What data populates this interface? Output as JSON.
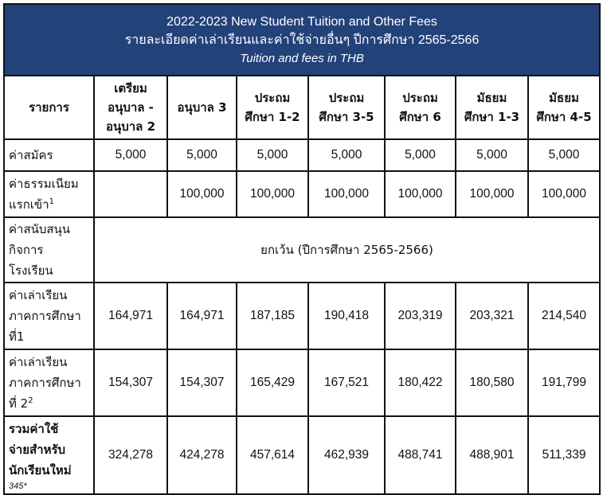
{
  "header": {
    "title": "2022-2023 New Student Tuition and Other Fees",
    "title_th": "รายละเอียดค่าเล่าเรียนและค่าใช้จ่ายอื่นๆ ปีการศึกษา 2565-2566",
    "subtitle": "Tuition and fees in THB"
  },
  "columns": {
    "item": "รายการ",
    "c1": [
      "เตรียม",
      "อนุบาล -",
      "อนุบาล 2"
    ],
    "c2": [
      "อนุบาล 3"
    ],
    "c3": [
      "ประถม",
      "ศึกษา 1-2"
    ],
    "c4": [
      "ประถม",
      "ศึกษา 3-5"
    ],
    "c5": [
      "ประถม",
      "ศึกษา 6"
    ],
    "c6": [
      "มัธยม",
      "ศึกษา 1-3"
    ],
    "c7": [
      "มัธยม",
      "ศึกษา 4-5"
    ]
  },
  "rows": {
    "application": {
      "label": "ค่าสมัคร",
      "values": [
        "5,000",
        "5,000",
        "5,000",
        "5,000",
        "5,000",
        "5,000",
        "5,000"
      ]
    },
    "entrance": {
      "label_line1": "ค่าธรรมเนียม",
      "label_line2": "แรกเข้า",
      "sup": "1",
      "values": [
        "",
        "100,000",
        "100,000",
        "100,000",
        "100,000",
        "100,000",
        "100,000"
      ]
    },
    "support": {
      "label_line1": "ค่าสนับสนุน",
      "label_line2": "กิจการ",
      "label_line3": "โรงเรียน",
      "merged_value": "ยกเว้น (ปีการศึกษา 2565-2566)"
    },
    "term1": {
      "label_line1": "ค่าเล่าเรียน",
      "label_line2": "ภาคการศึกษา",
      "label_line3": "ที่1",
      "values": [
        "164,971",
        "164,971",
        "187,185",
        "190,418",
        "203,319",
        "203,321",
        "214,540"
      ]
    },
    "term2": {
      "label_line1": "ค่าเล่าเรียน",
      "label_line2": "ภาคการศึกษา",
      "label_line3": "ที่ 2",
      "sup": "2",
      "values": [
        "154,307",
        "154,307",
        "165,429",
        "167,521",
        "180,422",
        "180,580",
        "191,799"
      ]
    },
    "total": {
      "label_line1": "รวมค่าใช้",
      "label_line2": "จ่ายสำหรับ",
      "label_line3": "นักเรียนใหม่",
      "footnote": "345*",
      "values": [
        "324,278",
        "424,278",
        "457,614",
        "462,939",
        "488,741",
        "488,901",
        "511,339"
      ]
    }
  }
}
